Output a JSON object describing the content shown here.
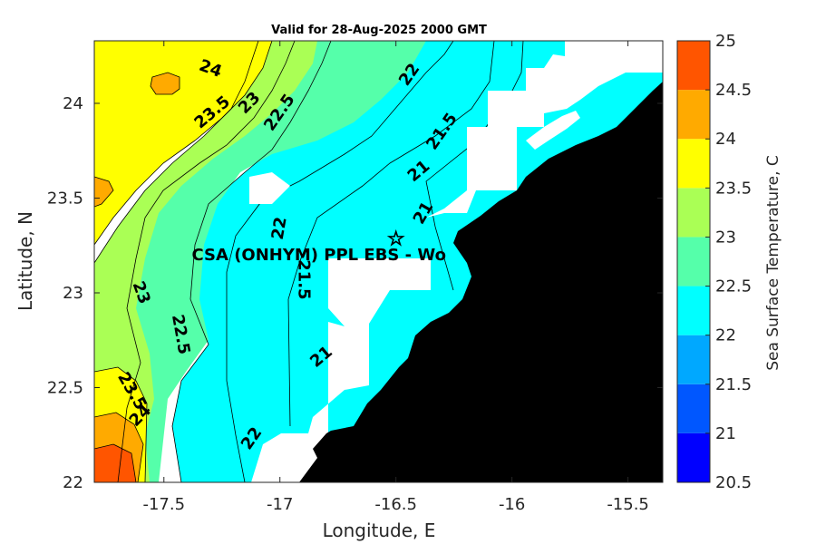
{
  "chart_data": {
    "type": "heatmap",
    "subtype": "filled-contour-map",
    "title": "Valid for 28-Aug-2025 2000 GMT",
    "xlabel": "Longitude, E",
    "ylabel": "Latitude, N",
    "xlim": [
      -17.8,
      -15.35
    ],
    "ylim": [
      22.0,
      24.33
    ],
    "xticks": [
      -17.5,
      -17,
      -16.5,
      -16,
      -15.5
    ],
    "xtick_labels": [
      "-17.5",
      "-17",
      "-16.5",
      "-16",
      "-15.5"
    ],
    "yticks": [
      22,
      22.5,
      23,
      23.5,
      24
    ],
    "ytick_labels": [
      "22",
      "22.5",
      "23",
      "23.5",
      "24"
    ],
    "colorbar": {
      "label": "Sea Surface Temperature, C",
      "levels": [
        20.5,
        21,
        21.5,
        22,
        22.5,
        23,
        23.5,
        24,
        24.5,
        25
      ],
      "tick_labels": [
        "20.5",
        "21",
        "21.5",
        "22",
        "22.5",
        "23",
        "23.5",
        "24",
        "24.5",
        "25"
      ],
      "band_colors": [
        "#0000ff",
        "#0057ff",
        "#00a8ff",
        "#00ffff",
        "#55ffaa",
        "#aaff55",
        "#ffff00",
        "#ffaa00",
        "#ff5500"
      ]
    },
    "land_color": "#000000",
    "no_data_color": "#ffffff",
    "contour_labels": [
      {
        "text": "24",
        "lon": -17.3,
        "lat": 24.18,
        "rot": 20
      },
      {
        "text": "23.5",
        "lon": -17.29,
        "lat": 23.95,
        "rot": -40
      },
      {
        "text": "23",
        "lon": -17.13,
        "lat": 24.0,
        "rot": -45
      },
      {
        "text": "22.5",
        "lon": -17.0,
        "lat": 23.95,
        "rot": -55
      },
      {
        "text": "22",
        "lon": -16.44,
        "lat": 24.15,
        "rot": -55
      },
      {
        "text": "21.5",
        "lon": -16.3,
        "lat": 23.85,
        "rot": -55
      },
      {
        "text": "21",
        "lon": -16.4,
        "lat": 23.64,
        "rot": -40
      },
      {
        "text": "21",
        "lon": -16.38,
        "lat": 23.42,
        "rot": -60
      },
      {
        "text": "22",
        "lon": -17.0,
        "lat": 23.34,
        "rot": -80
      },
      {
        "text": "21.5",
        "lon": -16.9,
        "lat": 23.07,
        "rot": 90
      },
      {
        "text": "23",
        "lon": -17.6,
        "lat": 23.0,
        "rot": 70
      },
      {
        "text": "22.5",
        "lon": -17.43,
        "lat": 22.78,
        "rot": 80
      },
      {
        "text": "21",
        "lon": -16.82,
        "lat": 22.66,
        "rot": -40
      },
      {
        "text": "23.5",
        "lon": -17.64,
        "lat": 22.48,
        "rot": 60
      },
      {
        "text": "24",
        "lon": -17.6,
        "lat": 22.35,
        "rot": -45
      },
      {
        "text": "22",
        "lon": -17.12,
        "lat": 22.23,
        "rot": -55
      }
    ],
    "annotation": {
      "text": "CSA (ONHYM) PPL EBS  - Wo",
      "lon": -17.38,
      "lat": 23.2
    },
    "marker": {
      "symbol": "☆",
      "lon": -16.5,
      "lat": 23.29
    }
  }
}
